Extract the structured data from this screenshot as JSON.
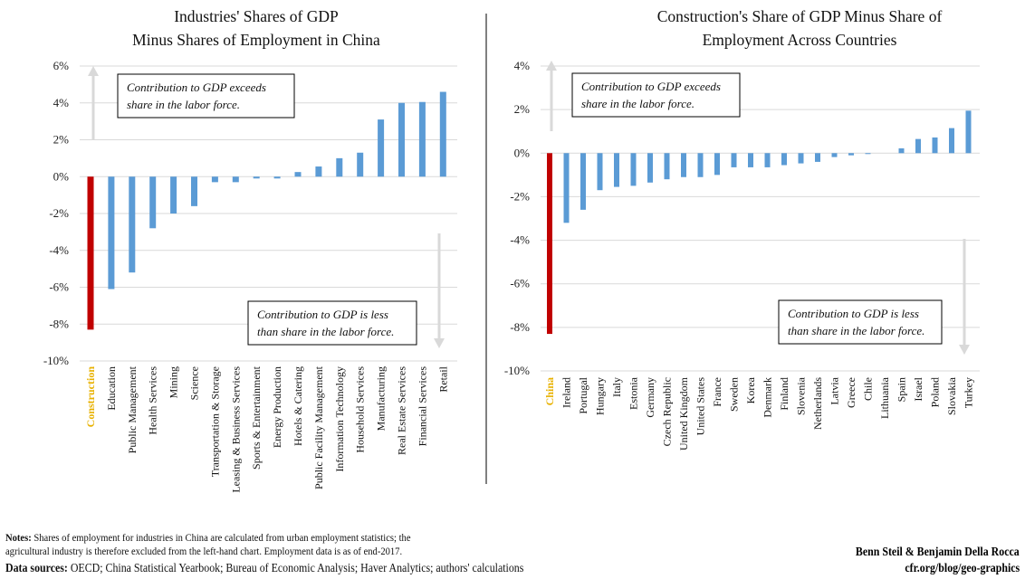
{
  "chart_data": [
    {
      "type": "bar",
      "title": "Industries' Shares of GDP Minus Shares of Employment in China",
      "title_lines": [
        "Industries' Shares of GDP",
        "Minus Shares of Employment in China"
      ],
      "categories": [
        "Construction",
        "Education",
        "Public Management",
        "Health Services",
        "Mining",
        "Science",
        "Transportation & Storage",
        "Leasing & Business Services",
        "Sports & Entertainment",
        "Energy Production",
        "Hotels & Catering",
        "Public Facility Management",
        "Information Technology",
        "Household Services",
        "Manufacturing",
        "Real Estate Services",
        "Financial Services",
        "Retail"
      ],
      "values": [
        -8.3,
        -6.1,
        -5.2,
        -2.8,
        -2.0,
        -1.6,
        -0.3,
        -0.3,
        -0.1,
        -0.1,
        0.25,
        0.55,
        1.0,
        1.3,
        3.1,
        4.0,
        4.05,
        4.6
      ],
      "highlight": "Construction",
      "ylim": [
        -10,
        6
      ],
      "yticks": [
        "6%",
        "4%",
        "2%",
        "0%",
        "-2%",
        "-4%",
        "-6%",
        "-8%",
        "-10%"
      ],
      "ytick_values": [
        6,
        4,
        2,
        0,
        -2,
        -4,
        -6,
        -8,
        -10
      ],
      "grid": true,
      "annotations": [
        {
          "lines": [
            "Contribution to GDP exceeds",
            "share in the labor force."
          ],
          "arrow": "up"
        },
        {
          "lines": [
            "Contribution to GDP is less",
            "than share in the labor force."
          ],
          "arrow": "down"
        }
      ]
    },
    {
      "type": "bar",
      "title": "Construction's Share of GDP Minus Share of Employment Across Countries",
      "title_lines": [
        "Construction's Share of GDP Minus Share of",
        "Employment Across Countries"
      ],
      "categories": [
        "China",
        "Ireland",
        "Portugal",
        "Hungary",
        "Italy",
        "Estonia",
        "Germany",
        "Czech Republic",
        "United Kingdom",
        "United States",
        "France",
        "Sweden",
        "Korea",
        "Denmark",
        "Finland",
        "Slovenia",
        "Netherlands",
        "Latvia",
        "Greece",
        "Chile",
        "Lithuania",
        "Spain",
        "Israel",
        "Poland",
        "Slovakia",
        "Turkey"
      ],
      "values": [
        -8.3,
        -3.2,
        -2.6,
        -1.7,
        -1.55,
        -1.5,
        -1.35,
        -1.2,
        -1.1,
        -1.1,
        -1.0,
        -0.65,
        -0.65,
        -0.65,
        -0.55,
        -0.47,
        -0.4,
        -0.18,
        -0.1,
        -0.04,
        0.0,
        0.22,
        0.65,
        0.72,
        1.15,
        1.95
      ],
      "highlight": "China",
      "ylim": [
        -10,
        4
      ],
      "yticks": [
        "4%",
        "2%",
        "0%",
        "-2%",
        "-4%",
        "-6%",
        "-8%",
        "-10%"
      ],
      "ytick_values": [
        4,
        2,
        0,
        -2,
        -4,
        -6,
        -8,
        -10
      ],
      "grid": true,
      "annotations": [
        {
          "lines": [
            "Contribution to GDP exceeds",
            "share in the labor force."
          ],
          "arrow": "up"
        },
        {
          "lines": [
            "Contribution to GDP is less",
            "than share in the labor force."
          ],
          "arrow": "down"
        }
      ]
    }
  ],
  "colors": {
    "bar": "#5b9bd5",
    "highlight_bar": "#c00000",
    "highlight_label": "#e8b100",
    "grid": "#d9d9d9",
    "arrow": "#d9d9d9"
  },
  "footer": {
    "notes_label": "Notes:",
    "notes_line1": "Shares of employment for industries in China are calculated from urban employment statistics; the",
    "notes_line2": "agricultural industry is therefore excluded from the left-hand chart. Employment data is as of end-2017.",
    "sources_label": "Data sources:",
    "sources_text": "OECD; China Statistical Yearbook; Bureau of Economic Analysis; Haver Analytics; authors' calculations",
    "authors": "Benn Steil & Benjamin Della Rocca",
    "site": "cfr.org/blog/geo-graphics"
  }
}
